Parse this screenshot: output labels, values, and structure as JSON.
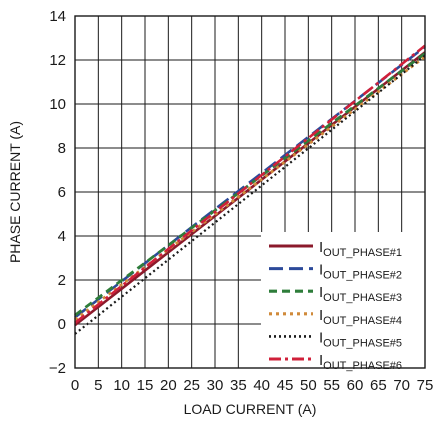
{
  "chart_data": {
    "type": "line",
    "title": "",
    "xlabel": "LOAD CURRENT (A)",
    "ylabel": "PHASE CURRENT (A)",
    "xlim": [
      0,
      75
    ],
    "ylim": [
      -2,
      14
    ],
    "xticks": [
      0,
      5,
      10,
      15,
      20,
      25,
      30,
      35,
      40,
      45,
      50,
      55,
      60,
      65,
      70,
      75
    ],
    "yticks": [
      -2,
      0,
      2,
      4,
      6,
      8,
      10,
      12,
      14
    ],
    "grid": true,
    "legend_position": "bottom-right",
    "series": [
      {
        "name": "I",
        "subscript": "OUT_PHASE#1",
        "color": "#8b1a2b",
        "dash": "solid",
        "x": [
          0,
          75
        ],
        "y": [
          -0.05,
          12.35
        ]
      },
      {
        "name": "I",
        "subscript": "OUT_PHASE#2",
        "color": "#2c4a9a",
        "dash": "long-dash",
        "x": [
          0,
          75
        ],
        "y": [
          0.3,
          12.6
        ]
      },
      {
        "name": "I",
        "subscript": "OUT_PHASE#3",
        "color": "#2e7d3a",
        "dash": "dash",
        "x": [
          0,
          75
        ],
        "y": [
          0.4,
          12.3
        ]
      },
      {
        "name": "I",
        "subscript": "OUT_PHASE#4",
        "color": "#d08a3a",
        "dash": "dot",
        "x": [
          0,
          75
        ],
        "y": [
          0.2,
          12.15
        ]
      },
      {
        "name": "I",
        "subscript": "OUT_PHASE#5",
        "color": "#1a1a1a",
        "dash": "fine-dot",
        "x": [
          0,
          75
        ],
        "y": [
          -0.45,
          12.2
        ]
      },
      {
        "name": "I",
        "subscript": "OUT_PHASE#6",
        "color": "#d0203a",
        "dash": "dash-dot",
        "x": [
          0,
          75
        ],
        "y": [
          0.05,
          12.65
        ]
      }
    ]
  }
}
